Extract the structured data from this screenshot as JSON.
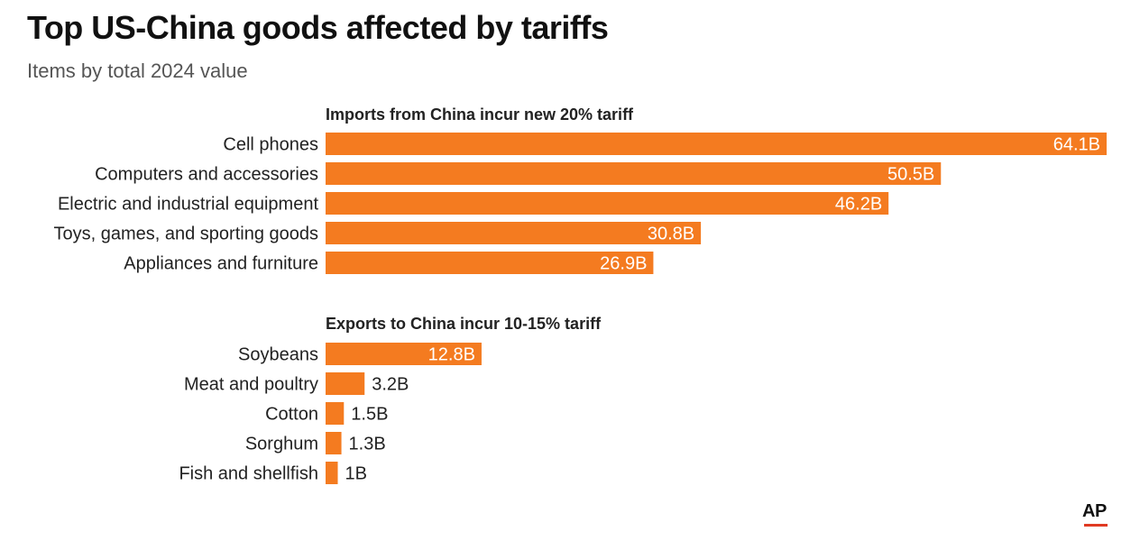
{
  "header": {
    "title": "Top US-China goods affected by tariffs",
    "subtitle": "Items by total 2024 value"
  },
  "brand": {
    "logo_text": "AP",
    "logo_accent": "#e03a22"
  },
  "colors": {
    "bar": "#f47b20",
    "label_inside": "#ffffff",
    "label_outside": "#222222"
  },
  "chart_data": {
    "type": "bar",
    "orientation": "horizontal",
    "unit": "B",
    "grid": false,
    "groups": [
      {
        "heading": "Imports from China incur new 20% tariff",
        "categories": [
          "Cell phones",
          "Computers and accessories",
          "Electric and industrial equipment",
          "Toys, games, and sporting goods",
          "Appliances and furniture"
        ],
        "values": [
          64.1,
          50.5,
          46.2,
          30.8,
          26.9
        ],
        "labels": [
          "64.1B",
          "50.5B",
          "46.2B",
          "30.8B",
          "26.9B"
        ]
      },
      {
        "heading": "Exports to China incur 10-15% tariff",
        "categories": [
          "Soybeans",
          "Meat and poultry",
          "Cotton",
          "Sorghum",
          "Fish and shellfish"
        ],
        "values": [
          12.8,
          3.2,
          1.5,
          1.3,
          1
        ],
        "labels": [
          "12.8B",
          "3.2B",
          "1.5B",
          "1.3B",
          "1B"
        ]
      }
    ]
  }
}
